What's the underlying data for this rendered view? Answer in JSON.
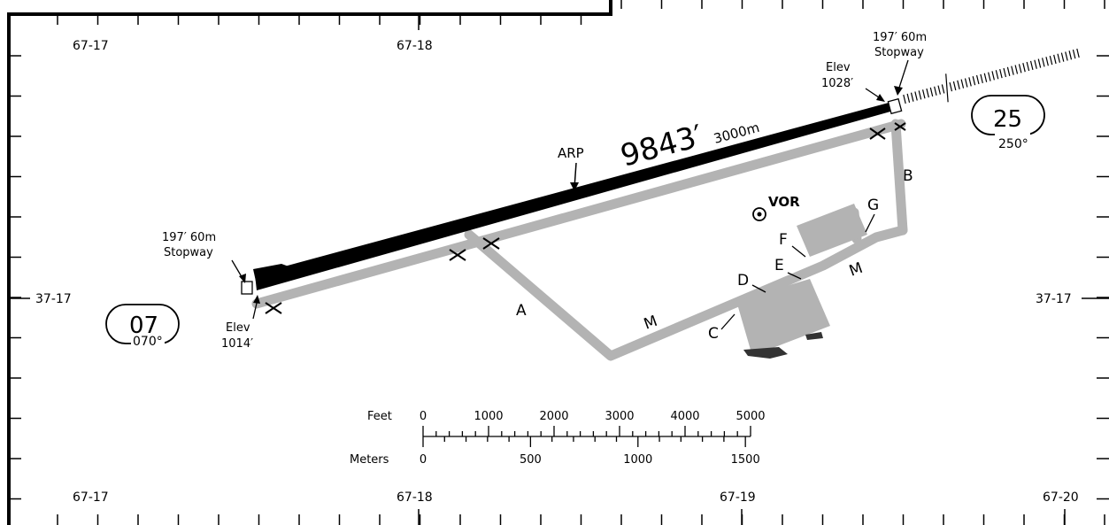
{
  "coordinates": {
    "top_left": "67-17",
    "top_mid": "67-18",
    "bottom_left": "67-17",
    "bottom_mid": "67-18",
    "bottom_right1": "67-19",
    "bottom_right2": "67-20",
    "left_lat": "37-17",
    "right_lat": "37-17"
  },
  "runway": {
    "length_ft": "9843′",
    "length_m": "3000m",
    "arp": "ARP",
    "end_west": {
      "number": "07",
      "heading": "070°"
    },
    "end_east": {
      "number": "25",
      "heading": "250°"
    },
    "stopway_west": {
      "dist": "197′ 60m",
      "label": "Stopway"
    },
    "stopway_east": {
      "dist": "197′ 60m",
      "label": "Stopway"
    },
    "elev_west": {
      "label": "Elev",
      "value": "1014′"
    },
    "elev_east": {
      "label": "Elev",
      "value": "1028′"
    }
  },
  "navaid": {
    "vor": "VOR"
  },
  "taxiways": {
    "a": "A",
    "b": "B",
    "c": "C",
    "d": "D",
    "e": "E",
    "f": "F",
    "g": "G",
    "m1": "M",
    "m2": "M"
  },
  "scale": {
    "feet_label": "Feet",
    "meters_label": "Meters",
    "feet_ticks": [
      "0",
      "1000",
      "2000",
      "3000",
      "4000",
      "5000"
    ],
    "meter_ticks": [
      "0",
      "500",
      "1000",
      "1500"
    ]
  },
  "colors": {
    "runway": "#000000",
    "taxiway": "#b3b3b3",
    "apron": "#b3b3b3",
    "frame": "#000000"
  }
}
